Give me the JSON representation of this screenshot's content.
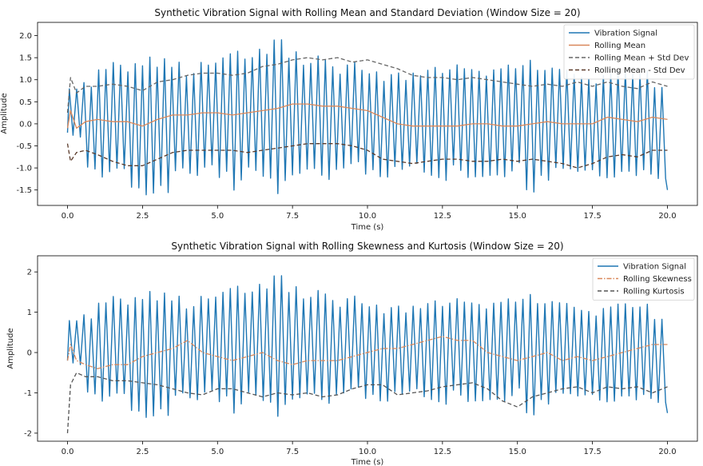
{
  "chart_data": [
    {
      "type": "line",
      "title": "Synthetic Vibration Signal with Rolling Mean and Standard Deviation (Window Size = 20)",
      "xlabel": "Time (s)",
      "ylabel": "Amplitude",
      "xlim": [
        -1.0,
        21.0
      ],
      "ylim": [
        -1.85,
        2.3
      ],
      "xticks": [
        "0.0",
        "2.5",
        "5.0",
        "7.5",
        "10.0",
        "12.5",
        "15.0",
        "17.5",
        "20.0"
      ],
      "yticks": [
        "-1.5",
        "-1.0",
        "-0.5",
        "0.0",
        "0.5",
        "1.0",
        "1.5",
        "2.0"
      ],
      "grid": false,
      "legend_position": "top-right",
      "series": [
        {
          "name": "Vibration Signal",
          "color": "#1f77b4",
          "style": "solid",
          "kind": "oscillation",
          "x_range": [
            0.0,
            20.0
          ],
          "upper_peaks": [
            0.85,
            1.0,
            1.3,
            1.45,
            1.4,
            1.6,
            1.5,
            1.45,
            1.3,
            1.4,
            1.55,
            1.75,
            1.6,
            1.8,
            2.15,
            1.75,
            1.55,
            1.6,
            1.4,
            1.5,
            1.35,
            1.2,
            1.2,
            1.15,
            1.3,
            1.4,
            1.5,
            1.45,
            1.35,
            1.3,
            1.45,
            1.55,
            1.3,
            1.35,
            1.3,
            1.2,
            1.1,
            1.25,
            1.35,
            1.3,
            1.0
          ],
          "lower_troughs": [
            -0.3,
            -1.05,
            -1.25,
            -1.2,
            -1.5,
            -1.8,
            -1.6,
            -1.2,
            -1.3,
            -1.1,
            -1.25,
            -1.55,
            -1.2,
            -1.4,
            -1.6,
            -1.4,
            -1.2,
            -1.3,
            -1.1,
            -1.0,
            -1.15,
            -1.3,
            -1.1,
            -1.0,
            -1.2,
            -1.3,
            -1.1,
            -1.25,
            -1.35,
            -1.2,
            -1.1,
            -1.65,
            -1.3,
            -1.2,
            -1.15,
            -1.2,
            -1.3,
            -1.25,
            -1.2,
            -1.3,
            -1.5
          ]
        },
        {
          "name": "Rolling Mean",
          "color": "#d9875a",
          "style": "solid",
          "x": [
            0.0,
            0.1,
            0.3,
            0.6,
            1.0,
            1.5,
            2.0,
            2.5,
            3.0,
            3.5,
            4.0,
            4.5,
            5.0,
            5.5,
            6.0,
            6.5,
            7.0,
            7.5,
            8.0,
            8.5,
            9.0,
            9.5,
            10.0,
            10.5,
            11.0,
            11.5,
            12.0,
            12.5,
            13.0,
            13.5,
            14.0,
            14.5,
            15.0,
            15.5,
            16.0,
            16.5,
            17.0,
            17.5,
            18.0,
            18.5,
            19.0,
            19.5,
            20.0
          ],
          "y": [
            -0.1,
            0.3,
            -0.1,
            0.05,
            0.1,
            0.05,
            0.05,
            -0.05,
            0.1,
            0.2,
            0.2,
            0.25,
            0.25,
            0.2,
            0.25,
            0.3,
            0.35,
            0.45,
            0.45,
            0.4,
            0.4,
            0.35,
            0.3,
            0.15,
            0.0,
            -0.05,
            -0.05,
            -0.05,
            -0.05,
            0.0,
            0.0,
            -0.05,
            -0.05,
            0.0,
            0.05,
            0.0,
            0.0,
            0.0,
            0.15,
            0.1,
            0.05,
            0.15,
            0.1
          ]
        },
        {
          "name": "Rolling Mean + Std Dev",
          "color": "#666666",
          "style": "dashed",
          "x": [
            0.0,
            0.1,
            0.3,
            0.6,
            1.0,
            1.5,
            2.0,
            2.5,
            3.0,
            3.5,
            4.0,
            4.5,
            5.0,
            5.5,
            6.0,
            6.5,
            7.0,
            7.5,
            8.0,
            8.5,
            9.0,
            9.5,
            10.0,
            10.5,
            11.0,
            11.5,
            12.0,
            12.5,
            13.0,
            13.5,
            14.0,
            14.5,
            15.0,
            15.5,
            16.0,
            16.5,
            17.0,
            17.5,
            18.0,
            18.5,
            19.0,
            19.5,
            20.0
          ],
          "y": [
            0.25,
            1.05,
            0.7,
            0.85,
            0.85,
            0.9,
            0.85,
            0.75,
            0.95,
            1.0,
            1.1,
            1.15,
            1.15,
            1.1,
            1.15,
            1.3,
            1.35,
            1.45,
            1.5,
            1.45,
            1.5,
            1.4,
            1.45,
            1.35,
            1.25,
            1.1,
            1.05,
            1.05,
            1.0,
            1.05,
            1.0,
            0.95,
            0.9,
            0.85,
            0.9,
            0.85,
            0.95,
            0.85,
            0.95,
            0.85,
            0.8,
            0.95,
            0.85
          ]
        },
        {
          "name": "Rolling Mean - Std Dev",
          "color": "#5a3a2a",
          "style": "dashed",
          "x": [
            0.0,
            0.1,
            0.3,
            0.6,
            1.0,
            1.5,
            2.0,
            2.5,
            3.0,
            3.5,
            4.0,
            4.5,
            5.0,
            5.5,
            6.0,
            6.5,
            7.0,
            7.5,
            8.0,
            8.5,
            9.0,
            9.5,
            10.0,
            10.5,
            11.0,
            11.5,
            12.0,
            12.5,
            13.0,
            13.5,
            14.0,
            14.5,
            15.0,
            15.5,
            16.0,
            16.5,
            17.0,
            17.5,
            18.0,
            18.5,
            19.0,
            19.5,
            20.0
          ],
          "y": [
            -0.45,
            -0.85,
            -0.65,
            -0.6,
            -0.7,
            -0.85,
            -0.95,
            -0.95,
            -0.8,
            -0.65,
            -0.6,
            -0.6,
            -0.6,
            -0.6,
            -0.65,
            -0.6,
            -0.55,
            -0.5,
            -0.45,
            -0.45,
            -0.45,
            -0.5,
            -0.6,
            -0.8,
            -0.85,
            -0.9,
            -0.85,
            -0.8,
            -0.8,
            -0.85,
            -0.85,
            -0.8,
            -0.85,
            -0.8,
            -0.85,
            -0.9,
            -1.0,
            -0.9,
            -0.75,
            -0.7,
            -0.75,
            -0.6,
            -0.6
          ]
        }
      ]
    },
    {
      "type": "line",
      "title": "Synthetic Vibration Signal with Rolling Skewness and Kurtosis (Window Size = 20)",
      "xlabel": "Time (s)",
      "ylabel": "Amplitude",
      "xlim": [
        -1.0,
        21.0
      ],
      "ylim": [
        -2.2,
        2.4
      ],
      "xticks": [
        "0.0",
        "2.5",
        "5.0",
        "7.5",
        "10.0",
        "12.5",
        "15.0",
        "17.5",
        "20.0"
      ],
      "yticks": [
        "-2",
        "-1",
        "0",
        "1",
        "2"
      ],
      "grid": false,
      "legend_position": "top-right",
      "series": [
        {
          "name": "Vibration Signal",
          "color": "#1f77b4",
          "style": "solid",
          "kind": "oscillation",
          "x_range": [
            0.0,
            20.0
          ],
          "upper_peaks": [
            0.85,
            1.0,
            1.3,
            1.45,
            1.4,
            1.6,
            1.5,
            1.45,
            1.3,
            1.4,
            1.55,
            1.75,
            1.6,
            1.8,
            2.15,
            1.75,
            1.55,
            1.6,
            1.4,
            1.5,
            1.35,
            1.2,
            1.2,
            1.15,
            1.3,
            1.4,
            1.5,
            1.45,
            1.35,
            1.3,
            1.45,
            1.55,
            1.3,
            1.35,
            1.3,
            1.2,
            1.1,
            1.25,
            1.35,
            1.3,
            1.0
          ],
          "lower_troughs": [
            -0.3,
            -1.05,
            -1.25,
            -1.2,
            -1.5,
            -1.8,
            -1.6,
            -1.2,
            -1.3,
            -1.1,
            -1.25,
            -1.55,
            -1.2,
            -1.4,
            -1.6,
            -1.4,
            -1.2,
            -1.3,
            -1.1,
            -1.0,
            -1.15,
            -1.3,
            -1.1,
            -1.0,
            -1.2,
            -1.3,
            -1.1,
            -1.25,
            -1.35,
            -1.2,
            -1.1,
            -1.65,
            -1.3,
            -1.2,
            -1.15,
            -1.2,
            -1.3,
            -1.25,
            -1.2,
            -1.3,
            -1.5
          ]
        },
        {
          "name": "Rolling Skewness",
          "color": "#d9875a",
          "style": "dashdot",
          "x": [
            0.0,
            0.1,
            0.3,
            0.6,
            1.0,
            1.5,
            2.0,
            2.5,
            3.0,
            3.5,
            4.0,
            4.5,
            5.0,
            5.5,
            6.0,
            6.5,
            7.0,
            7.5,
            8.0,
            8.5,
            9.0,
            9.5,
            10.0,
            10.5,
            11.0,
            11.5,
            12.0,
            12.5,
            13.0,
            13.5,
            14.0,
            14.5,
            15.0,
            15.5,
            16.0,
            16.5,
            17.0,
            17.5,
            18.0,
            18.5,
            19.0,
            19.5,
            20.0
          ],
          "y": [
            -0.2,
            0.2,
            -0.2,
            -0.3,
            -0.4,
            -0.3,
            -0.3,
            -0.1,
            0.0,
            0.1,
            0.3,
            0.0,
            -0.1,
            -0.2,
            -0.1,
            0.0,
            -0.2,
            -0.3,
            -0.2,
            -0.2,
            -0.2,
            -0.1,
            0.0,
            0.1,
            0.1,
            0.2,
            0.3,
            0.4,
            0.3,
            0.3,
            0.0,
            -0.1,
            -0.2,
            -0.1,
            0.0,
            -0.2,
            -0.1,
            -0.2,
            -0.1,
            0.0,
            0.1,
            0.2,
            0.2
          ]
        },
        {
          "name": "Rolling Kurtosis",
          "color": "#555555",
          "style": "dashed",
          "x": [
            0.0,
            0.1,
            0.3,
            0.6,
            1.0,
            1.5,
            2.0,
            2.5,
            3.0,
            3.5,
            4.0,
            4.5,
            5.0,
            5.5,
            6.0,
            6.5,
            7.0,
            7.5,
            8.0,
            8.5,
            9.0,
            9.5,
            10.0,
            10.5,
            11.0,
            11.5,
            12.0,
            12.5,
            13.0,
            13.5,
            14.0,
            14.5,
            15.0,
            15.5,
            16.0,
            16.5,
            17.0,
            17.5,
            18.0,
            18.5,
            19.0,
            19.5,
            20.0
          ],
          "y": [
            -2.0,
            -0.8,
            -0.5,
            -0.6,
            -0.6,
            -0.7,
            -0.7,
            -0.75,
            -0.8,
            -0.9,
            -1.0,
            -1.05,
            -0.9,
            -0.9,
            -1.0,
            -1.1,
            -1.0,
            -1.05,
            -1.0,
            -1.1,
            -1.05,
            -0.9,
            -0.8,
            -0.8,
            -1.05,
            -1.0,
            -0.95,
            -0.85,
            -0.8,
            -0.75,
            -0.9,
            -1.2,
            -1.35,
            -1.1,
            -1.0,
            -0.9,
            -0.85,
            -1.0,
            -0.85,
            -0.9,
            -0.85,
            -1.0,
            -0.85
          ]
        }
      ]
    }
  ]
}
